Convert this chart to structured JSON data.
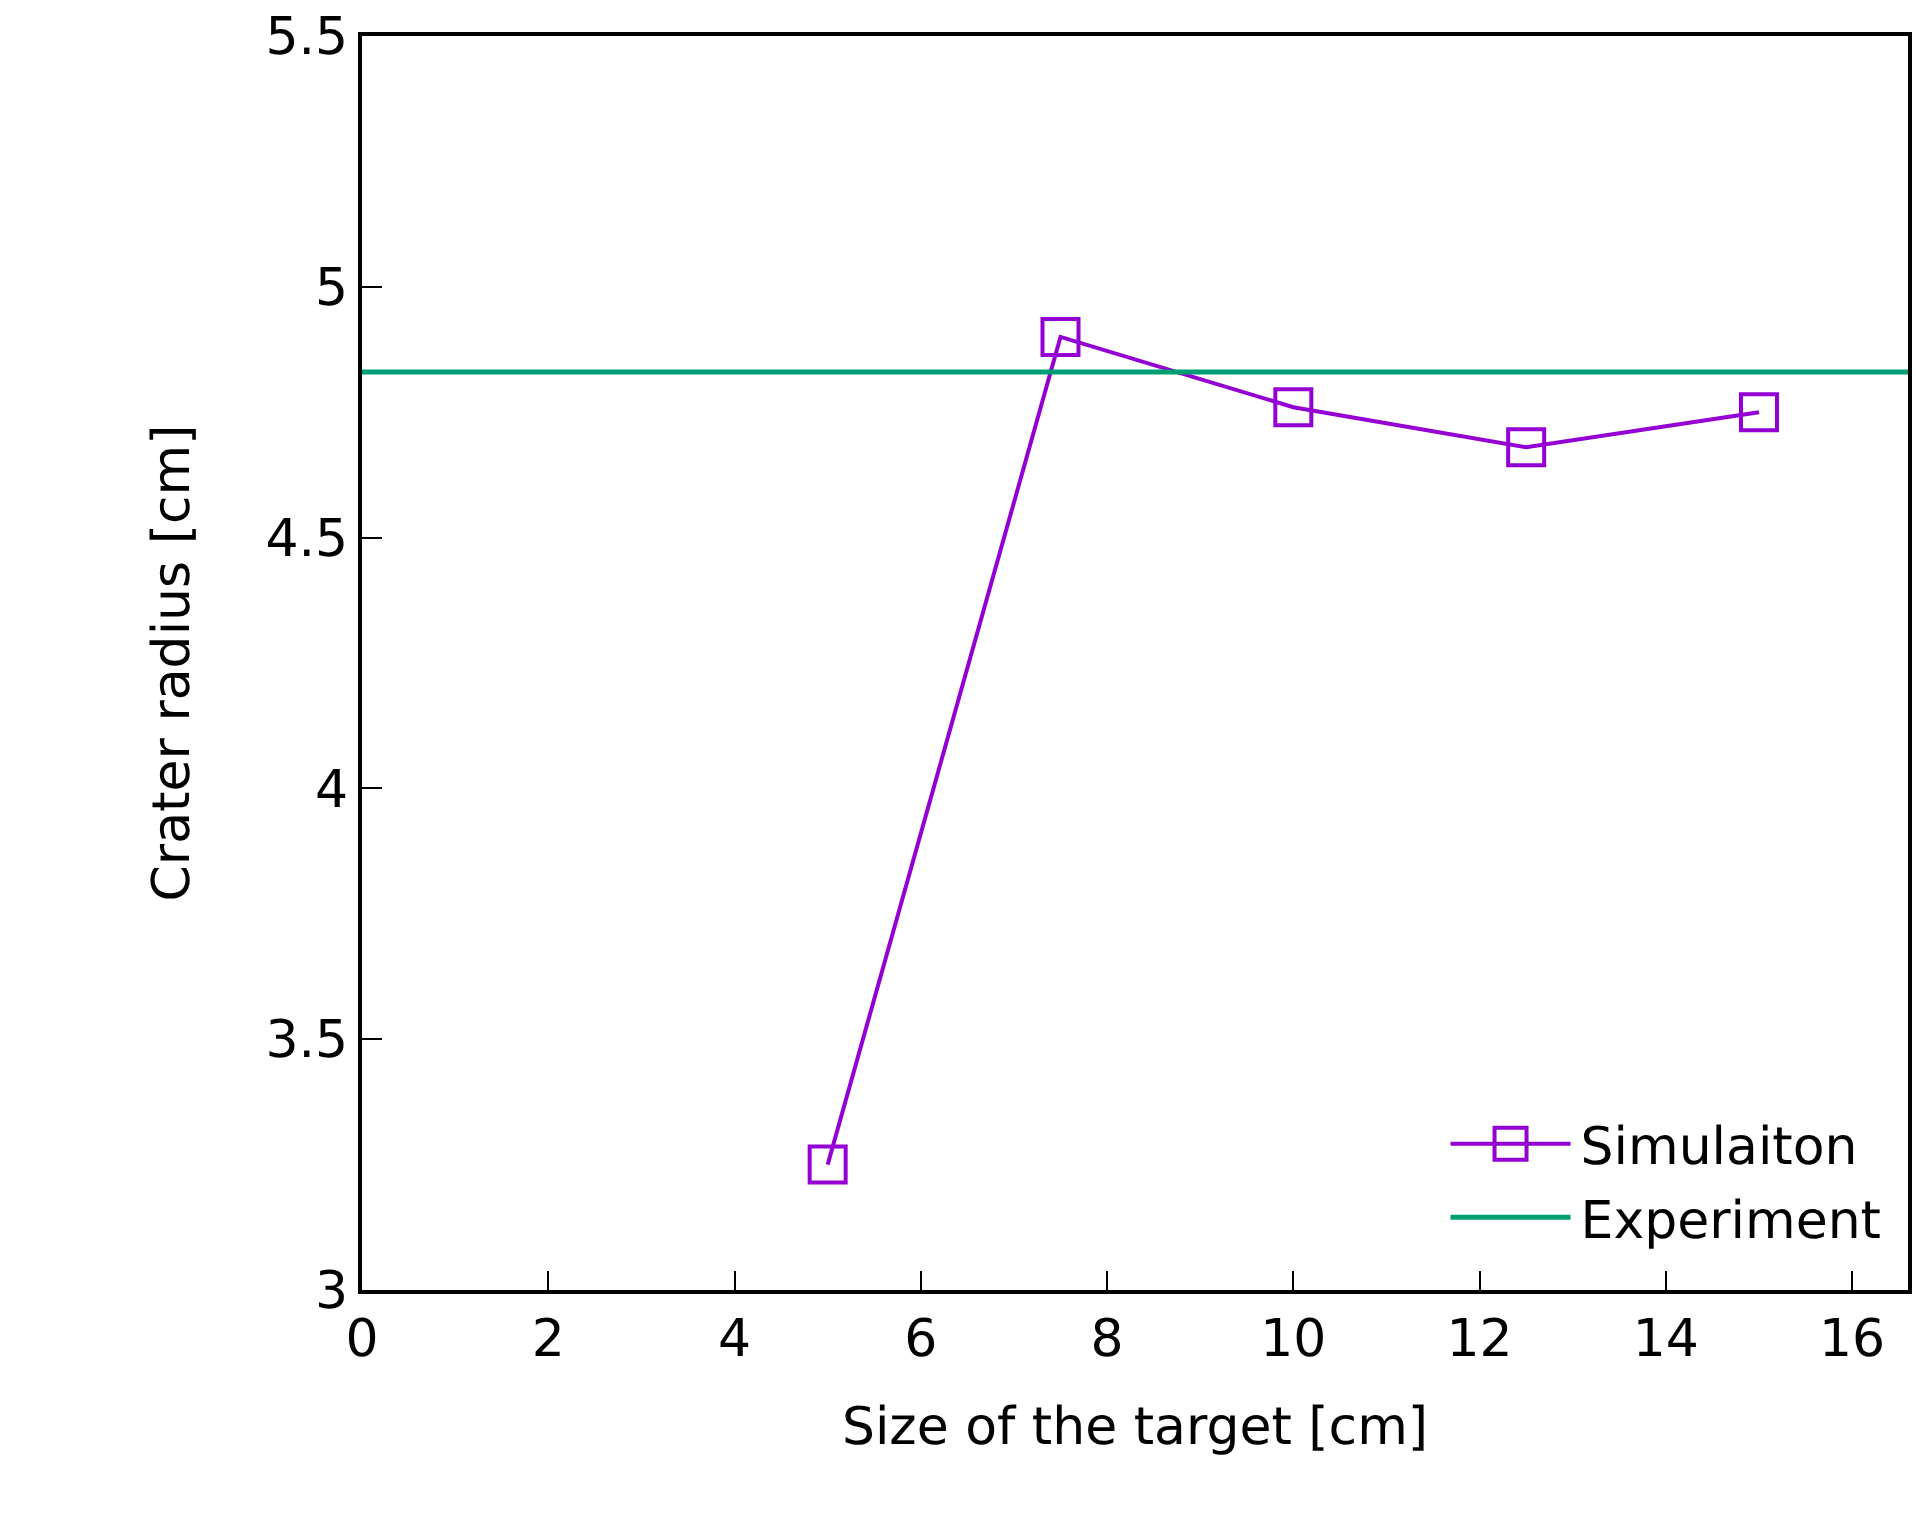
{
  "chart_data": {
    "type": "line",
    "xlabel": "Size of the target [cm]",
    "ylabel": "Crater radius [cm]",
    "x": [
      5,
      7.5,
      10,
      12.5,
      15
    ],
    "series": [
      {
        "name": "Simulaiton",
        "color": "#9400d3",
        "values": [
          3.25,
          4.9,
          4.76,
          4.68,
          4.75
        ]
      }
    ],
    "ref_lines": [
      {
        "axis": "y",
        "value": 4.83,
        "label": "Experiment",
        "color": "#009e73",
        "line_style": "solid"
      }
    ],
    "xlim": [
      0,
      16.6
    ],
    "xticks": [
      0,
      2,
      4,
      6,
      8,
      10,
      12,
      14,
      16
    ],
    "ylim": [
      3,
      5.5
    ],
    "yticks": [
      3,
      3.5,
      4,
      4.5,
      5,
      5.5
    ],
    "marker": "square",
    "line_style": "solid",
    "legend": "bottom right"
  }
}
